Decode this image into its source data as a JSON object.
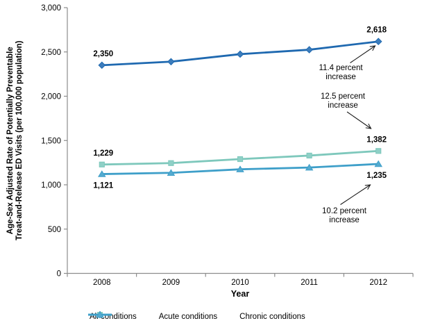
{
  "chart_data": {
    "type": "line",
    "title": "",
    "xlabel": "Year",
    "ylabel_lines": [
      "Age-Sex Adjusted Rate of Potentially Preventable",
      "Treat-and-Release ED Visits (per 100,000 population)"
    ],
    "categories": [
      "2008",
      "2009",
      "2010",
      "2011",
      "2012"
    ],
    "ylim": [
      0,
      3000
    ],
    "ytick_interval": 500,
    "ytick_labels": [
      "0",
      "500",
      "1,000",
      "1,500",
      "2,000",
      "2,500",
      "3,000"
    ],
    "grid": false,
    "legend_position": "bottom",
    "series": [
      {
        "name": "All conditions",
        "marker": "diamond",
        "color": "#1F69B0",
        "marker_fill": "#3D7DBC",
        "values": [
          2350,
          2390,
          2475,
          2525,
          2618
        ],
        "first_label": "2,350",
        "last_label": "2,618",
        "label_side": "above"
      },
      {
        "name": "Acute conditions",
        "marker": "square",
        "color": "#7EC8BC",
        "marker_fill": "#8FD0C7",
        "values": [
          1229,
          1245,
          1290,
          1330,
          1382
        ],
        "first_label": "1,229",
        "last_label": "1,382",
        "label_side": "above"
      },
      {
        "name": "Chronic conditions",
        "marker": "triangle",
        "color": "#3E9FC9",
        "marker_fill": "#55ABD0",
        "values": [
          1121,
          1135,
          1175,
          1195,
          1235
        ],
        "first_label": "1,121",
        "last_label": "1,235",
        "label_side": "below"
      }
    ],
    "annotations": [
      {
        "lines": [
          "11.4 percent",
          "increase"
        ],
        "refers_to": "All conditions 2012"
      },
      {
        "lines": [
          "12.5 percent",
          "increase"
        ],
        "refers_to": "Acute conditions 2012"
      },
      {
        "lines": [
          "10.2 percent",
          "increase"
        ],
        "refers_to": "Chronic conditions 2012"
      }
    ],
    "colors": {
      "axis": "#8C8C8C",
      "text": "#000000",
      "arrow": "#1A1A1A"
    }
  }
}
